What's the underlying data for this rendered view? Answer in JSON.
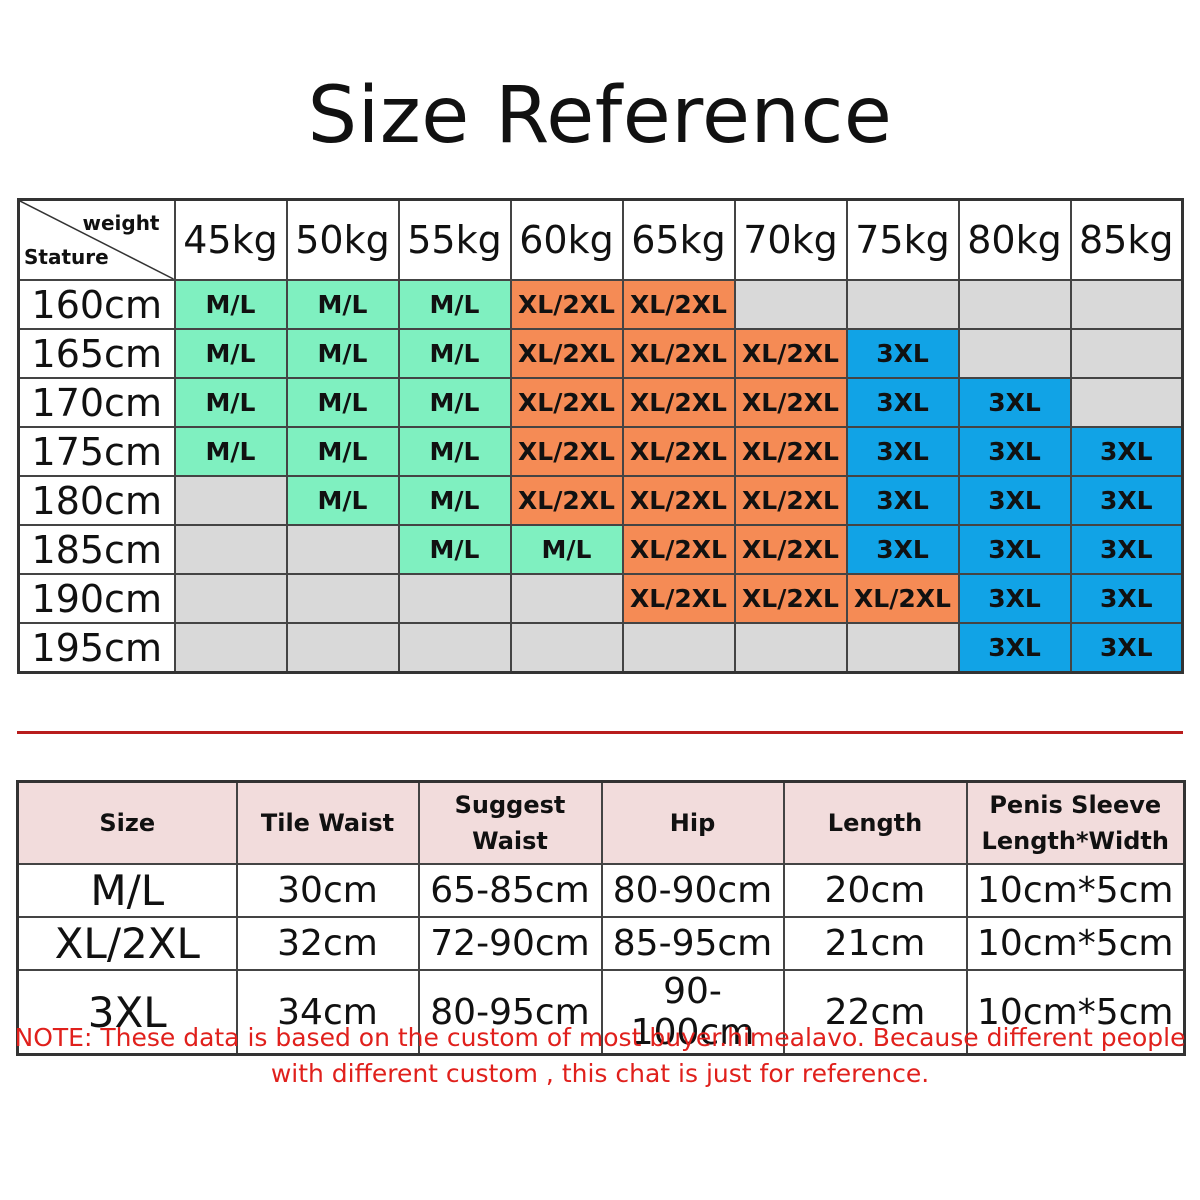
{
  "title": "Size Reference",
  "colors": {
    "M/L": "#7ff0c0",
    "XL/2XL": "#f58b55",
    "3XL": "#11a3e6",
    "none": "#d9d9d9",
    "divider": "#b81c1c",
    "note": "#e0201c",
    "spec_header_bg": "#f2dcdc"
  },
  "chart_data": {
    "type": "table",
    "corner_top": "weight",
    "corner_bottom": "Stature",
    "columns": [
      "45kg",
      "50kg",
      "55kg",
      "60kg",
      "65kg",
      "70kg",
      "75kg",
      "80kg",
      "85kg"
    ],
    "rows": [
      {
        "stature": "160cm",
        "cells": [
          "M/L",
          "M/L",
          "M/L",
          "XL/2XL",
          "XL/2XL",
          "",
          "",
          "",
          ""
        ]
      },
      {
        "stature": "165cm",
        "cells": [
          "M/L",
          "M/L",
          "M/L",
          "XL/2XL",
          "XL/2XL",
          "XL/2XL",
          "3XL",
          "",
          ""
        ]
      },
      {
        "stature": "170cm",
        "cells": [
          "M/L",
          "M/L",
          "M/L",
          "XL/2XL",
          "XL/2XL",
          "XL/2XL",
          "3XL",
          "3XL",
          ""
        ]
      },
      {
        "stature": "175cm",
        "cells": [
          "M/L",
          "M/L",
          "M/L",
          "XL/2XL",
          "XL/2XL",
          "XL/2XL",
          "3XL",
          "3XL",
          "3XL"
        ]
      },
      {
        "stature": "180cm",
        "cells": [
          "",
          "M/L",
          "M/L",
          "XL/2XL",
          "XL/2XL",
          "XL/2XL",
          "3XL",
          "3XL",
          "3XL"
        ]
      },
      {
        "stature": "185cm",
        "cells": [
          "",
          "",
          "M/L",
          "M/L",
          "XL/2XL",
          "XL/2XL",
          "3XL",
          "3XL",
          "3XL"
        ]
      },
      {
        "stature": "190cm",
        "cells": [
          "",
          "",
          "",
          "",
          "XL/2XL",
          "XL/2XL",
          "XL/2XL",
          "3XL",
          "3XL"
        ]
      },
      {
        "stature": "195cm",
        "cells": [
          "",
          "",
          "",
          "",
          "",
          "",
          "",
          "3XL",
          "3XL"
        ]
      }
    ]
  },
  "spec_table": {
    "headers": [
      "Size",
      "Tile Waist",
      "Suggest Waist",
      "Hip",
      "Length",
      "Penis Sleeve\nLength*Width"
    ],
    "rows": [
      [
        "M/L",
        "30cm",
        "65-85cm",
        "80-90cm",
        "20cm",
        "10cm*5cm"
      ],
      [
        "XL/2XL",
        "32cm",
        "72-90cm",
        "85-95cm",
        "21cm",
        "10cm*5cm"
      ],
      [
        "3XL",
        "34cm",
        "80-95cm",
        "90-100cm",
        "22cm",
        "10cm*5cm"
      ]
    ]
  },
  "note": {
    "line1": "NOTE: These data is based on the custom of most buyer.himealavo. Because different people",
    "line2": "with different custom , this chat is just for reference."
  }
}
